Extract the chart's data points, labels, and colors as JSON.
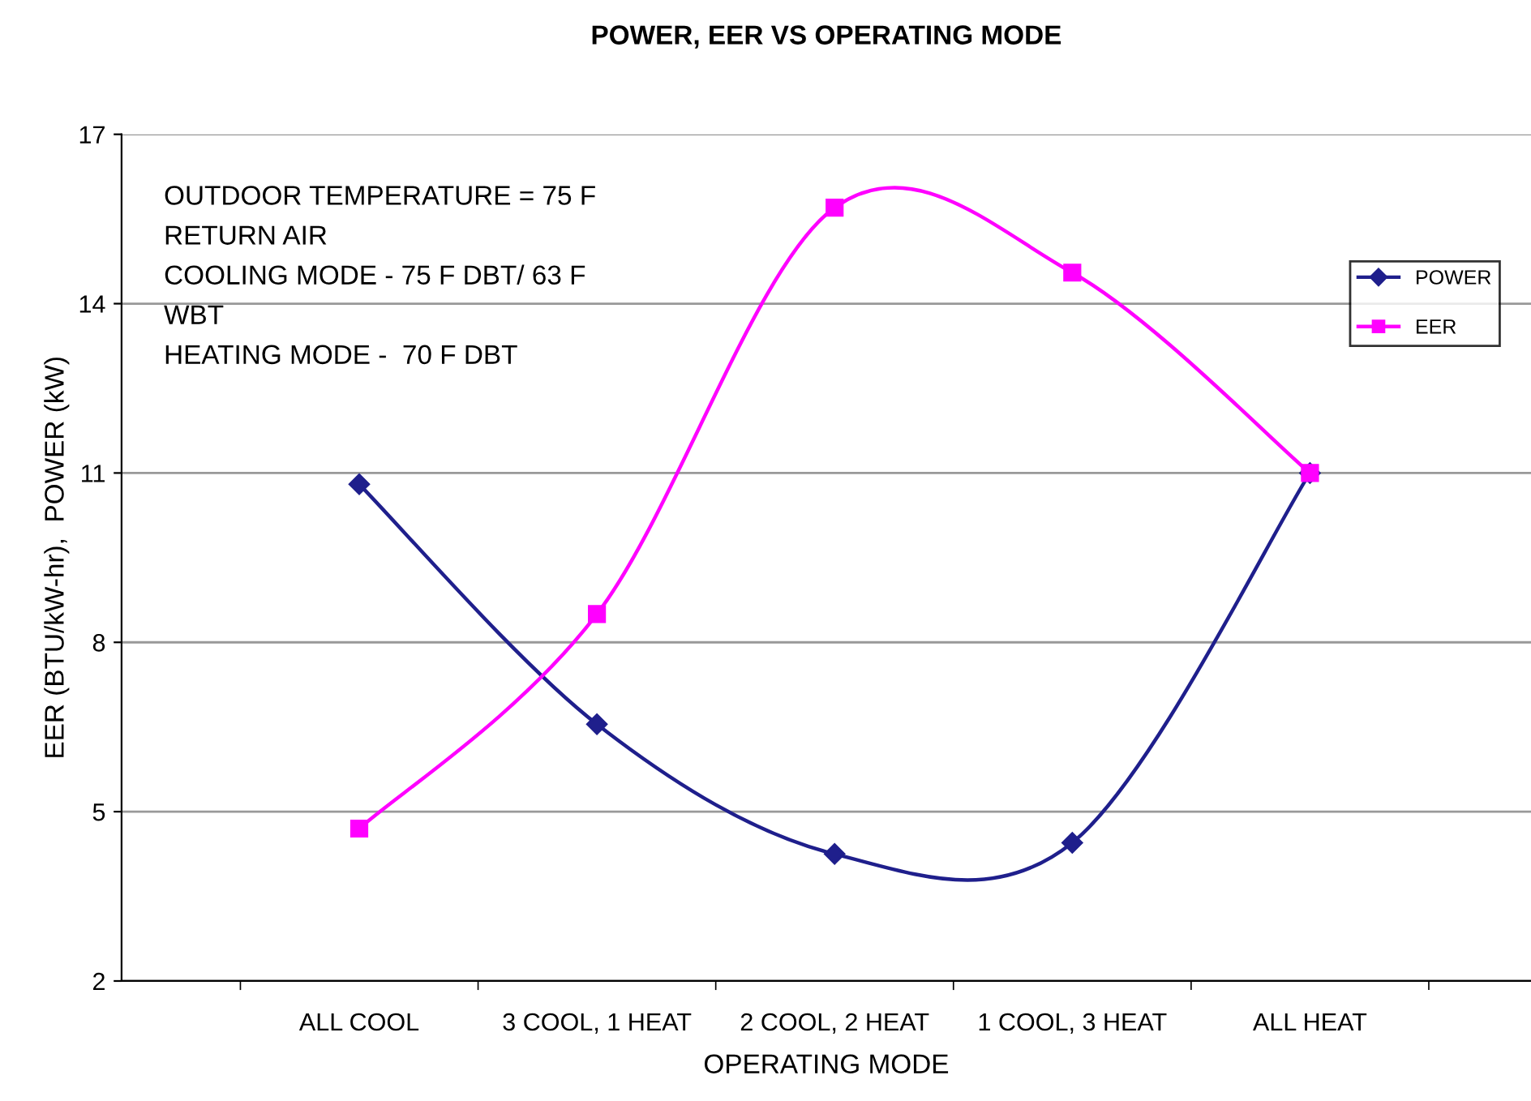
{
  "chart_data": {
    "type": "line",
    "title": "POWER, EER VS OPERATING MODE",
    "xlabel": "OPERATING MODE",
    "ylabel": "EER (BTU/kW-hr),  POWER (kW)",
    "categories": [
      "ALL COOL",
      "3 COOL, 1 HEAT",
      "2 COOL, 2 HEAT",
      "1 COOL, 3 HEAT",
      "ALL HEAT"
    ],
    "series": [
      {
        "name": "POWER",
        "color": "#1f1f8c",
        "marker": "diamond",
        "values": [
          10.8,
          6.55,
          4.25,
          4.45,
          11.0
        ]
      },
      {
        "name": "EER",
        "color": "#ff00ff",
        "marker": "square",
        "values": [
          4.7,
          8.5,
          15.7,
          14.55,
          11.0
        ]
      }
    ],
    "ylim": [
      2,
      17
    ],
    "yticks": [
      2,
      5,
      8,
      11,
      14,
      17
    ],
    "grid": "y",
    "legend": "right",
    "line_style": "solid",
    "annotations": [
      "OUTDOOR TEMPERATURE = 75 F",
      "RETURN AIR",
      "COOLING MODE - 75 F DBT/ 63 F",
      "WBT",
      "HEATING MODE -  70 F DBT"
    ]
  }
}
